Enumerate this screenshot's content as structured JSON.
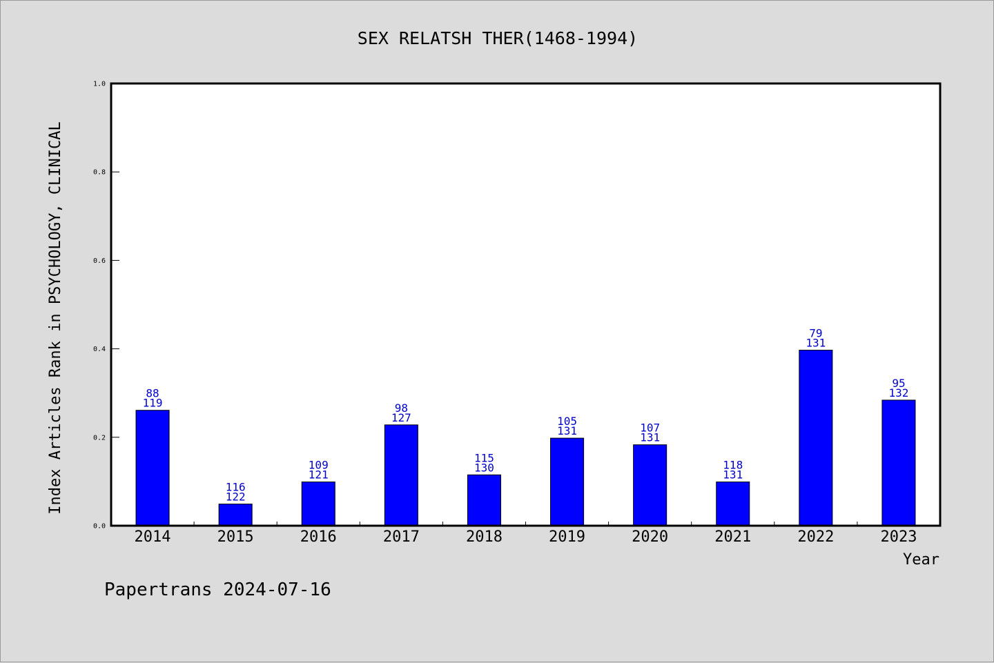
{
  "chart_data": {
    "type": "bar",
    "title": "SEX RELATSH THER(1468-1994)",
    "xlabel": "Year",
    "ylabel": "Index Articles Rank in PSYCHOLOGY, CLINICAL",
    "ylim": [
      0,
      1.0
    ],
    "yticks": [
      "0.0",
      "0.2",
      "0.4",
      "0.6",
      "0.8",
      "1.0"
    ],
    "grid": false,
    "categories": [
      "2014",
      "2015",
      "2016",
      "2017",
      "2018",
      "2019",
      "2020",
      "2021",
      "2022",
      "2023"
    ],
    "values": [
      0.261,
      0.049,
      0.099,
      0.228,
      0.115,
      0.198,
      0.183,
      0.099,
      0.397,
      0.284
    ],
    "ranks": [
      88,
      116,
      109,
      98,
      115,
      105,
      107,
      118,
      79,
      95
    ],
    "totals": [
      119,
      122,
      121,
      127,
      130,
      131,
      131,
      131,
      131,
      132
    ],
    "bar_color": "#0000ff",
    "label_color": "#0000cc"
  },
  "footer": "Papertrans 2024-07-16"
}
